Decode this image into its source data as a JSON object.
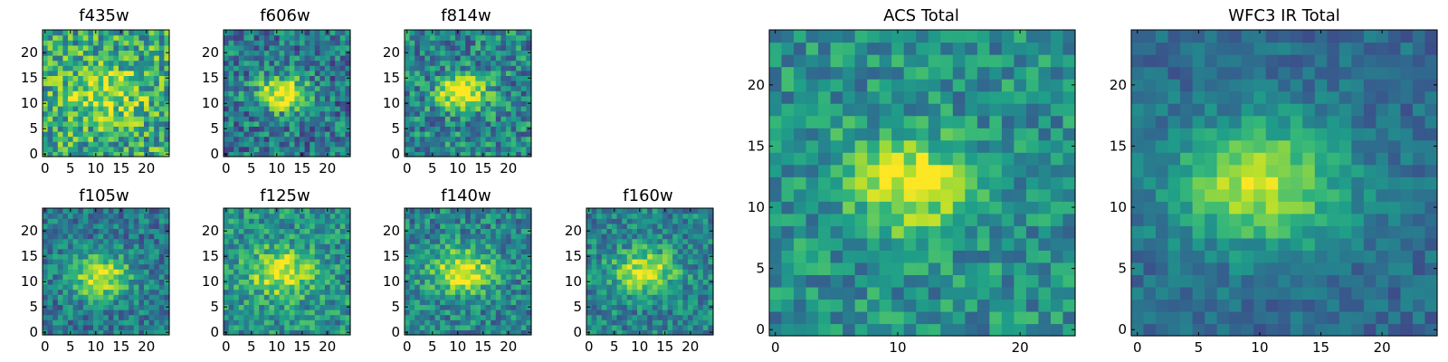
{
  "chart_data": [
    {
      "type": "heatmap",
      "title": "f435w",
      "image_size": 25,
      "xticks": [
        0,
        5,
        10,
        15,
        20
      ],
      "yticks": [
        0,
        5,
        10,
        15,
        20
      ],
      "xlim": [
        0,
        25
      ],
      "ylim": [
        0,
        25
      ],
      "source_center": [
        12,
        12
      ],
      "source_width": 3.5,
      "peak_level": 0.35,
      "background_level": 0.6,
      "noise": 0.3,
      "colormap": "viridis"
    },
    {
      "type": "heatmap",
      "title": "f606w",
      "image_size": 25,
      "xticks": [
        0,
        5,
        10,
        15,
        20
      ],
      "yticks": [
        0,
        5,
        10,
        15,
        20
      ],
      "xlim": [
        0,
        25
      ],
      "ylim": [
        0,
        25
      ],
      "source_center": [
        11,
        12
      ],
      "source_width": 2.4,
      "peak_level": 0.65,
      "background_level": 0.4,
      "noise": 0.26,
      "colormap": "viridis"
    },
    {
      "type": "heatmap",
      "title": "f814w",
      "image_size": 25,
      "xticks": [
        0,
        5,
        10,
        15,
        20
      ],
      "yticks": [
        0,
        5,
        10,
        15,
        20
      ],
      "xlim": [
        0,
        25
      ],
      "ylim": [
        0,
        25
      ],
      "source_center": [
        11,
        12
      ],
      "source_width": 2.4,
      "peak_level": 0.6,
      "background_level": 0.45,
      "noise": 0.26,
      "colormap": "viridis"
    },
    {
      "type": "heatmap",
      "title": "f105w",
      "image_size": 25,
      "xticks": [
        0,
        5,
        10,
        15,
        20
      ],
      "yticks": [
        0,
        5,
        10,
        15,
        20
      ],
      "xlim": [
        0,
        25
      ],
      "ylim": [
        0,
        25
      ],
      "source_center": [
        11,
        11
      ],
      "source_width": 3.0,
      "peak_level": 0.55,
      "background_level": 0.4,
      "noise": 0.2,
      "colormap": "viridis"
    },
    {
      "type": "heatmap",
      "title": "f125w",
      "image_size": 25,
      "xticks": [
        0,
        5,
        10,
        15,
        20
      ],
      "yticks": [
        0,
        5,
        10,
        15,
        20
      ],
      "xlim": [
        0,
        25
      ],
      "ylim": [
        0,
        25
      ],
      "source_center": [
        11,
        12
      ],
      "source_width": 3.2,
      "peak_level": 0.5,
      "background_level": 0.5,
      "noise": 0.22,
      "colormap": "viridis"
    },
    {
      "type": "heatmap",
      "title": "f140w",
      "image_size": 25,
      "xticks": [
        0,
        5,
        10,
        15,
        20
      ],
      "yticks": [
        0,
        5,
        10,
        15,
        20
      ],
      "xlim": [
        0,
        25
      ],
      "ylim": [
        0,
        25
      ],
      "source_center": [
        11,
        12
      ],
      "source_width": 3.0,
      "peak_level": 0.55,
      "background_level": 0.45,
      "noise": 0.22,
      "colormap": "viridis"
    },
    {
      "type": "heatmap",
      "title": "f160w",
      "image_size": 25,
      "xticks": [
        0,
        5,
        10,
        15,
        20
      ],
      "yticks": [
        0,
        5,
        10,
        15,
        20
      ],
      "xlim": [
        0,
        25
      ],
      "ylim": [
        0,
        25
      ],
      "source_center": [
        11,
        12
      ],
      "source_width": 3.0,
      "peak_level": 0.5,
      "background_level": 0.45,
      "noise": 0.2,
      "colormap": "viridis"
    },
    {
      "type": "heatmap",
      "title": "ACS Total",
      "image_size": 25,
      "xticks": [
        0,
        10,
        20
      ],
      "yticks": [
        0,
        5,
        10,
        15,
        20
      ],
      "xlim": [
        0,
        25
      ],
      "ylim": [
        0,
        25
      ],
      "source_center": [
        11,
        12
      ],
      "source_width": 2.6,
      "peak_level": 0.5,
      "background_level": 0.5,
      "noise": 0.2,
      "colormap": "viridis"
    },
    {
      "type": "heatmap",
      "title": "WFC3 IR Total",
      "image_size": 25,
      "xticks": [
        0,
        5,
        10,
        15,
        20
      ],
      "yticks": [
        0,
        5,
        10,
        15,
        20
      ],
      "xlim": [
        0,
        25
      ],
      "ylim": [
        0,
        25
      ],
      "source_center": [
        10,
        12
      ],
      "source_width": 3.6,
      "peak_level": 0.55,
      "background_level": 0.35,
      "noise": 0.12,
      "colormap": "viridis"
    }
  ]
}
